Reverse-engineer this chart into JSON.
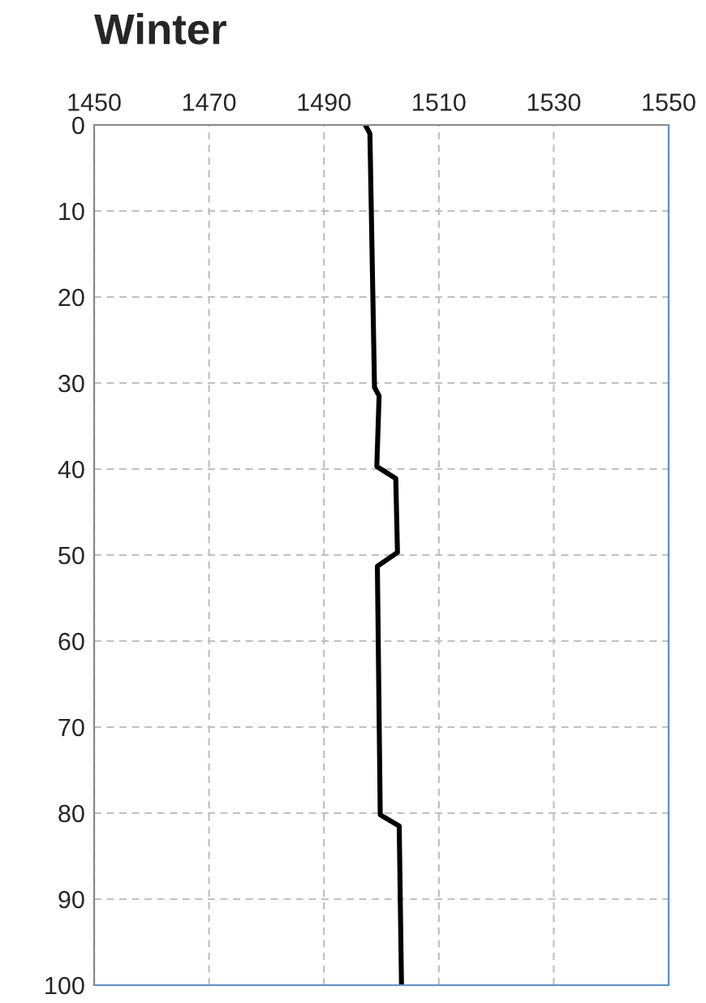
{
  "chart_data": {
    "type": "line",
    "title": "Winter",
    "series": [
      {
        "color": "#000000",
        "x": [
          1497.2,
          1498.0,
          1498.8,
          1499.6,
          1499.2,
          1502.5,
          1502.8,
          1499.3,
          1499.8,
          1503.1,
          1503.5
        ],
        "values": [
          0,
          1,
          30.5,
          31.5,
          39.7,
          41.1,
          49.7,
          51.3,
          80.2,
          81.5,
          100
        ]
      }
    ],
    "xlim": [
      1450,
      1550
    ],
    "xticks": [
      1450,
      1470,
      1490,
      1510,
      1530,
      1550
    ],
    "ylim": [
      100,
      0
    ],
    "yticks": [
      0,
      10,
      20,
      30,
      40,
      50,
      60,
      70,
      80,
      90,
      100
    ],
    "grid": true,
    "line_style": "solid",
    "marker": "none",
    "legend": false
  }
}
